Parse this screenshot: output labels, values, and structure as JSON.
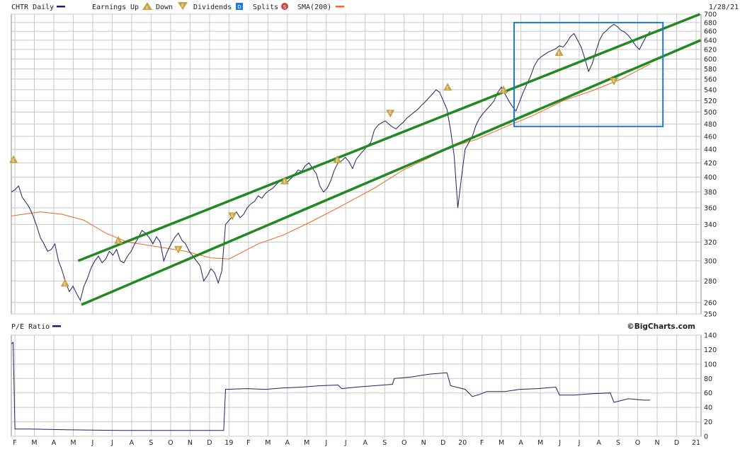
{
  "chart_data": [
    {
      "type": "line",
      "title": "CHTR Daily",
      "date": "1/28/21",
      "legend": {
        "series_label": "CHTR Daily",
        "earnings_label": "Earnings",
        "up_label": "Up",
        "down_label": "Down",
        "dividends_label": "Dividends",
        "splits_label": "Splits",
        "sma_label": "SMA(200)"
      },
      "ylim": [
        250,
        700
      ],
      "y_ticks": [
        250,
        260,
        280,
        300,
        320,
        340,
        360,
        380,
        400,
        420,
        440,
        460,
        480,
        500,
        520,
        540,
        560,
        580,
        600,
        620,
        640,
        660,
        680,
        700
      ],
      "x_ticks": [
        "F",
        "M",
        "A",
        "M",
        "J",
        "J",
        "A",
        "S",
        "O",
        "N",
        "D",
        "19",
        "F",
        "M",
        "A",
        "M",
        "J",
        "J",
        "A",
        "S",
        "O",
        "N",
        "D",
        "20",
        "F",
        "M",
        "A",
        "M",
        "J",
        "J",
        "A",
        "S",
        "O",
        "N",
        "D",
        "21"
      ],
      "colors": {
        "price": "#1f1f66",
        "sma": "#ee6622",
        "channel": "#228822",
        "box": "#2277dd",
        "earnings": "#c8a040",
        "grid": "#c8c8c8"
      },
      "price_points": [
        {
          "x": 0,
          "y": 380
        },
        {
          "x": 1,
          "y": 383
        },
        {
          "x": 2,
          "y": 388
        },
        {
          "x": 3,
          "y": 373
        },
        {
          "x": 4,
          "y": 367
        },
        {
          "x": 5,
          "y": 360
        },
        {
          "x": 6,
          "y": 350
        },
        {
          "x": 7,
          "y": 338
        },
        {
          "x": 8,
          "y": 325
        },
        {
          "x": 9,
          "y": 318
        },
        {
          "x": 10,
          "y": 310
        },
        {
          "x": 11,
          "y": 312
        },
        {
          "x": 12,
          "y": 318
        },
        {
          "x": 13,
          "y": 300
        },
        {
          "x": 14,
          "y": 290
        },
        {
          "x": 15,
          "y": 278
        },
        {
          "x": 16,
          "y": 270
        },
        {
          "x": 17,
          "y": 275
        },
        {
          "x": 18,
          "y": 268
        },
        {
          "x": 19,
          "y": 262
        },
        {
          "x": 20,
          "y": 275
        },
        {
          "x": 21,
          "y": 283
        },
        {
          "x": 22,
          "y": 293
        },
        {
          "x": 23,
          "y": 300
        },
        {
          "x": 24,
          "y": 305
        },
        {
          "x": 25,
          "y": 298
        },
        {
          "x": 26,
          "y": 302
        },
        {
          "x": 27,
          "y": 310
        },
        {
          "x": 28,
          "y": 306
        },
        {
          "x": 29,
          "y": 312
        },
        {
          "x": 30,
          "y": 300
        },
        {
          "x": 31,
          "y": 298
        },
        {
          "x": 32,
          "y": 305
        },
        {
          "x": 33,
          "y": 310
        },
        {
          "x": 34,
          "y": 318
        },
        {
          "x": 35,
          "y": 325
        },
        {
          "x": 36,
          "y": 333
        },
        {
          "x": 37,
          "y": 330
        },
        {
          "x": 38,
          "y": 325
        },
        {
          "x": 39,
          "y": 318
        },
        {
          "x": 40,
          "y": 326
        },
        {
          "x": 41,
          "y": 320
        },
        {
          "x": 42,
          "y": 300
        },
        {
          "x": 43,
          "y": 310
        },
        {
          "x": 44,
          "y": 318
        },
        {
          "x": 45,
          "y": 325
        },
        {
          "x": 46,
          "y": 330
        },
        {
          "x": 47,
          "y": 322
        },
        {
          "x": 48,
          "y": 318
        },
        {
          "x": 49,
          "y": 310
        },
        {
          "x": 50,
          "y": 305
        },
        {
          "x": 51,
          "y": 300
        },
        {
          "x": 52,
          "y": 295
        },
        {
          "x": 53,
          "y": 280
        },
        {
          "x": 54,
          "y": 285
        },
        {
          "x": 55,
          "y": 292
        },
        {
          "x": 56,
          "y": 288
        },
        {
          "x": 57,
          "y": 278
        },
        {
          "x": 58,
          "y": 290
        },
        {
          "x": 59,
          "y": 340
        },
        {
          "x": 60,
          "y": 345
        },
        {
          "x": 61,
          "y": 350
        },
        {
          "x": 62,
          "y": 355
        },
        {
          "x": 63,
          "y": 348
        },
        {
          "x": 64,
          "y": 352
        },
        {
          "x": 65,
          "y": 360
        },
        {
          "x": 66,
          "y": 365
        },
        {
          "x": 67,
          "y": 368
        },
        {
          "x": 68,
          "y": 375
        },
        {
          "x": 69,
          "y": 372
        },
        {
          "x": 70,
          "y": 378
        },
        {
          "x": 71,
          "y": 382
        },
        {
          "x": 72,
          "y": 385
        },
        {
          "x": 73,
          "y": 390
        },
        {
          "x": 74,
          "y": 395
        },
        {
          "x": 75,
          "y": 398
        },
        {
          "x": 76,
          "y": 393
        },
        {
          "x": 77,
          "y": 398
        },
        {
          "x": 78,
          "y": 403
        },
        {
          "x": 79,
          "y": 410
        },
        {
          "x": 80,
          "y": 408
        },
        {
          "x": 81,
          "y": 416
        },
        {
          "x": 82,
          "y": 420
        },
        {
          "x": 83,
          "y": 412
        },
        {
          "x": 84,
          "y": 405
        },
        {
          "x": 85,
          "y": 388
        },
        {
          "x": 86,
          "y": 380
        },
        {
          "x": 87,
          "y": 385
        },
        {
          "x": 88,
          "y": 395
        },
        {
          "x": 89,
          "y": 410
        },
        {
          "x": 90,
          "y": 420
        },
        {
          "x": 91,
          "y": 423
        },
        {
          "x": 92,
          "y": 428
        },
        {
          "x": 93,
          "y": 422
        },
        {
          "x": 94,
          "y": 412
        },
        {
          "x": 95,
          "y": 425
        },
        {
          "x": 96,
          "y": 432
        },
        {
          "x": 97,
          "y": 438
        },
        {
          "x": 98,
          "y": 445
        },
        {
          "x": 99,
          "y": 450
        },
        {
          "x": 100,
          "y": 470
        },
        {
          "x": 101,
          "y": 478
        },
        {
          "x": 102,
          "y": 482
        },
        {
          "x": 103,
          "y": 485
        },
        {
          "x": 104,
          "y": 480
        },
        {
          "x": 105,
          "y": 475
        },
        {
          "x": 106,
          "y": 472
        },
        {
          "x": 107,
          "y": 478
        },
        {
          "x": 108,
          "y": 483
        },
        {
          "x": 109,
          "y": 490
        },
        {
          "x": 110,
          "y": 495
        },
        {
          "x": 111,
          "y": 500
        },
        {
          "x": 112,
          "y": 505
        },
        {
          "x": 113,
          "y": 512
        },
        {
          "x": 114,
          "y": 518
        },
        {
          "x": 115,
          "y": 525
        },
        {
          "x": 116,
          "y": 532
        },
        {
          "x": 117,
          "y": 540
        },
        {
          "x": 118,
          "y": 535
        },
        {
          "x": 119,
          "y": 520
        },
        {
          "x": 120,
          "y": 505
        },
        {
          "x": 121,
          "y": 470
        },
        {
          "x": 122,
          "y": 430
        },
        {
          "x": 123,
          "y": 360
        },
        {
          "x": 124,
          "y": 400
        },
        {
          "x": 125,
          "y": 440
        },
        {
          "x": 126,
          "y": 450
        },
        {
          "x": 127,
          "y": 460
        },
        {
          "x": 128,
          "y": 478
        },
        {
          "x": 129,
          "y": 490
        },
        {
          "x": 130,
          "y": 498
        },
        {
          "x": 131,
          "y": 505
        },
        {
          "x": 132,
          "y": 512
        },
        {
          "x": 133,
          "y": 520
        },
        {
          "x": 134,
          "y": 535
        },
        {
          "x": 135,
          "y": 545
        },
        {
          "x": 136,
          "y": 532
        },
        {
          "x": 137,
          "y": 520
        },
        {
          "x": 138,
          "y": 510
        },
        {
          "x": 139,
          "y": 502
        },
        {
          "x": 140,
          "y": 518
        },
        {
          "x": 141,
          "y": 535
        },
        {
          "x": 142,
          "y": 550
        },
        {
          "x": 143,
          "y": 565
        },
        {
          "x": 144,
          "y": 585
        },
        {
          "x": 145,
          "y": 598
        },
        {
          "x": 146,
          "y": 605
        },
        {
          "x": 147,
          "y": 610
        },
        {
          "x": 148,
          "y": 615
        },
        {
          "x": 149,
          "y": 618
        },
        {
          "x": 150,
          "y": 622
        },
        {
          "x": 151,
          "y": 628
        },
        {
          "x": 152,
          "y": 625
        },
        {
          "x": 153,
          "y": 635
        },
        {
          "x": 154,
          "y": 648
        },
        {
          "x": 155,
          "y": 655
        },
        {
          "x": 156,
          "y": 640
        },
        {
          "x": 157,
          "y": 625
        },
        {
          "x": 158,
          "y": 600
        },
        {
          "x": 159,
          "y": 575
        },
        {
          "x": 160,
          "y": 590
        },
        {
          "x": 161,
          "y": 615
        },
        {
          "x": 162,
          "y": 640
        },
        {
          "x": 163,
          "y": 655
        },
        {
          "x": 164,
          "y": 662
        },
        {
          "x": 165,
          "y": 670
        },
        {
          "x": 166,
          "y": 676
        },
        {
          "x": 167,
          "y": 670
        },
        {
          "x": 168,
          "y": 662
        },
        {
          "x": 169,
          "y": 658
        },
        {
          "x": 170,
          "y": 650
        },
        {
          "x": 171,
          "y": 640
        },
        {
          "x": 172,
          "y": 628
        },
        {
          "x": 173,
          "y": 620
        },
        {
          "x": 174,
          "y": 635
        },
        {
          "x": 175,
          "y": 650
        },
        {
          "x": 176,
          "y": 660
        }
      ],
      "sma_points": [
        {
          "x": 0,
          "y": 350
        },
        {
          "x": 8,
          "y": 355
        },
        {
          "x": 14,
          "y": 352
        },
        {
          "x": 20,
          "y": 345
        },
        {
          "x": 26,
          "y": 330
        },
        {
          "x": 32,
          "y": 320
        },
        {
          "x": 40,
          "y": 315
        },
        {
          "x": 48,
          "y": 310
        },
        {
          "x": 55,
          "y": 303
        },
        {
          "x": 60,
          "y": 302
        },
        {
          "x": 68,
          "y": 318
        },
        {
          "x": 75,
          "y": 328
        },
        {
          "x": 82,
          "y": 342
        },
        {
          "x": 90,
          "y": 360
        },
        {
          "x": 100,
          "y": 385
        },
        {
          "x": 108,
          "y": 410
        },
        {
          "x": 116,
          "y": 430
        },
        {
          "x": 122,
          "y": 445
        },
        {
          "x": 128,
          "y": 455
        },
        {
          "x": 136,
          "y": 475
        },
        {
          "x": 144,
          "y": 495
        },
        {
          "x": 152,
          "y": 520
        },
        {
          "x": 160,
          "y": 538
        },
        {
          "x": 168,
          "y": 560
        },
        {
          "x": 176,
          "y": 590
        }
      ],
      "channel_lines": [
        {
          "name": "upper",
          "x": [
            18.4,
            189.7
          ],
          "y": [
            300,
            700
          ]
        },
        {
          "name": "lower",
          "x": [
            19.3,
            189.9
          ],
          "y": [
            258,
            640
          ]
        }
      ],
      "highlight_box": {
        "x": [
          138.5,
          179.5
        ],
        "y": [
          476,
          680
        ]
      },
      "earnings_markers": [
        {
          "x": 0.6,
          "y": 425,
          "dir": "up"
        },
        {
          "x": 14.8,
          "y": 278,
          "dir": "up"
        },
        {
          "x": 29.5,
          "y": 322,
          "dir": "up"
        },
        {
          "x": 46.0,
          "y": 312,
          "dir": "down"
        },
        {
          "x": 60.9,
          "y": 350,
          "dir": "down"
        },
        {
          "x": 75.3,
          "y": 395,
          "dir": "up"
        },
        {
          "x": 89.8,
          "y": 425,
          "dir": "up"
        },
        {
          "x": 104.4,
          "y": 498,
          "dir": "down"
        },
        {
          "x": 120.2,
          "y": 545,
          "dir": "up"
        },
        {
          "x": 135.6,
          "y": 540,
          "dir": "up"
        },
        {
          "x": 150.9,
          "y": 614,
          "dir": "up"
        },
        {
          "x": 166.0,
          "y": 556,
          "dir": "down"
        }
      ]
    },
    {
      "type": "line",
      "title": "P/E Ratio",
      "brand": "©BigCharts.com",
      "ylim": [
        0,
        140
      ],
      "y_ticks": [
        0,
        20,
        40,
        60,
        80,
        100,
        120,
        140
      ],
      "pe_points": [
        {
          "x": 0,
          "y": 128
        },
        {
          "x": 0.5,
          "y": 130
        },
        {
          "x": 1,
          "y": 10
        },
        {
          "x": 5,
          "y": 10
        },
        {
          "x": 15,
          "y": 9
        },
        {
          "x": 30,
          "y": 8
        },
        {
          "x": 45,
          "y": 8
        },
        {
          "x": 58.5,
          "y": 8
        },
        {
          "x": 59,
          "y": 65
        },
        {
          "x": 65,
          "y": 66
        },
        {
          "x": 70,
          "y": 65
        },
        {
          "x": 75,
          "y": 67
        },
        {
          "x": 80,
          "y": 68
        },
        {
          "x": 85,
          "y": 70
        },
        {
          "x": 90,
          "y": 71
        },
        {
          "x": 91,
          "y": 66
        },
        {
          "x": 95,
          "y": 68
        },
        {
          "x": 100,
          "y": 70
        },
        {
          "x": 105,
          "y": 72
        },
        {
          "x": 105.5,
          "y": 80
        },
        {
          "x": 110,
          "y": 82
        },
        {
          "x": 115,
          "y": 86
        },
        {
          "x": 120,
          "y": 88
        },
        {
          "x": 121,
          "y": 70
        },
        {
          "x": 125,
          "y": 65
        },
        {
          "x": 127,
          "y": 55
        },
        {
          "x": 129,
          "y": 58
        },
        {
          "x": 131,
          "y": 62
        },
        {
          "x": 136,
          "y": 62
        },
        {
          "x": 140,
          "y": 65
        },
        {
          "x": 145,
          "y": 66
        },
        {
          "x": 150,
          "y": 68
        },
        {
          "x": 151,
          "y": 57
        },
        {
          "x": 155,
          "y": 57
        },
        {
          "x": 160,
          "y": 59
        },
        {
          "x": 165,
          "y": 60
        },
        {
          "x": 166,
          "y": 47
        },
        {
          "x": 170,
          "y": 52
        },
        {
          "x": 174,
          "y": 50
        },
        {
          "x": 176,
          "y": 50
        }
      ]
    }
  ]
}
